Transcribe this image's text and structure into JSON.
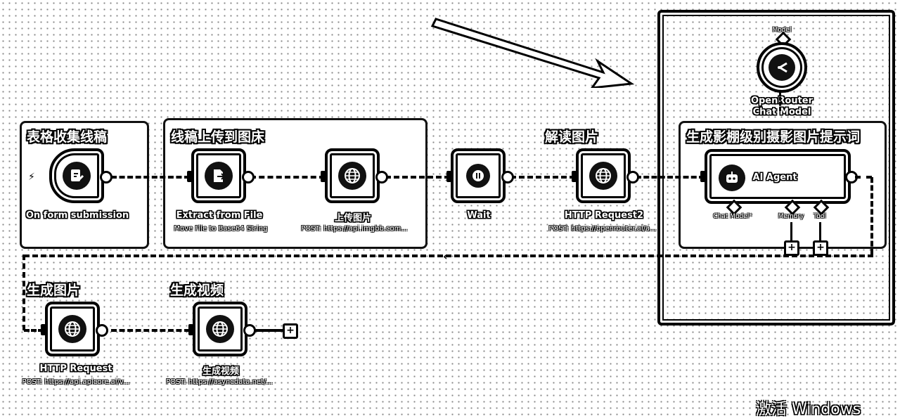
{
  "groups": {
    "form": "表格收集线稿",
    "upload": "线稿上传到图床",
    "interpret": "解读图片",
    "prompt": "生成影棚级别摄影图片提示词",
    "image": "生成图片",
    "video": "生成视频"
  },
  "nodes": {
    "form_trigger": {
      "label": "On form submission",
      "icon": "form-icon"
    },
    "extract": {
      "label": "Extract from File",
      "sub": "Move File to Base64 String",
      "icon": "file-export-icon"
    },
    "upload_img": {
      "label": "上传图片",
      "sub": "POST: https://api.imgbb.com...",
      "icon": "globe-icon"
    },
    "wait": {
      "label": "Wait",
      "icon": "pause-icon"
    },
    "http2": {
      "label": "HTTP Request2",
      "sub": "POST: https://openrouter.ai/a...",
      "icon": "globe-icon"
    },
    "ai_agent": {
      "label": "AI Agent",
      "icon": "robot-icon"
    },
    "openrouter": {
      "label": "OpenRouter Chat Model",
      "icon": "openrouter-icon"
    },
    "http": {
      "label": "HTTP Request",
      "sub": "POST: https://api.apicore.ai/v...",
      "icon": "globe-icon"
    },
    "video": {
      "label": "生成视频",
      "sub": "POST: https://asyncdata.net/...",
      "icon": "globe-icon"
    }
  },
  "agent_ports": {
    "chat_model": "Chat Model*",
    "memory": "Memory",
    "tool": "Tool"
  },
  "model_port": "Model",
  "plus": "+",
  "watermark": "激活 Windows"
}
